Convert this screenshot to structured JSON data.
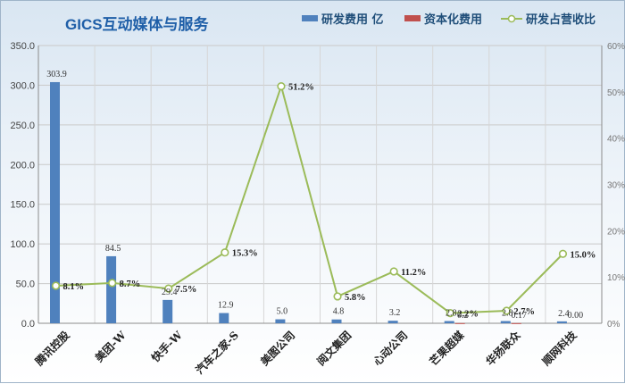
{
  "chart_data": {
    "type": "bar",
    "title": "GICS互动媒体与服务",
    "categories": [
      "腾讯控股",
      "美团-W",
      "快手-W",
      "汽车之家-S",
      "美图公司",
      "阅文集团",
      "心动公司",
      "芒果超媒",
      "华扬联众",
      "顺网科技"
    ],
    "series": [
      {
        "name": "研发费用 亿",
        "kind": "bar",
        "axis": "left",
        "color": "#4f81bd",
        "values": [
          303.9,
          84.5,
          29.4,
          12.9,
          5.0,
          4.8,
          3.2,
          2.8,
          2.8,
          2.4
        ],
        "labels": [
          "303.9",
          "84.5",
          "29.4",
          "12.9",
          "5.0",
          "4.8",
          "3.2",
          "2.8",
          "2.8",
          "2.4"
        ]
      },
      {
        "name": "资本化费用",
        "kind": "bar",
        "axis": "left",
        "color": "#c0504d",
        "values": [
          0,
          0,
          0,
          0,
          0,
          0,
          0,
          0.2,
          0.17,
          0.0
        ],
        "labels": [
          "",
          "",
          "",
          "",
          "",
          "",
          "",
          "0.2",
          "0.17",
          "0.00"
        ]
      },
      {
        "name": "研发占营收比",
        "kind": "line",
        "axis": "right",
        "color": "#9bbb59",
        "values": [
          8.1,
          8.7,
          7.5,
          15.3,
          51.2,
          5.8,
          11.2,
          2.2,
          2.7,
          15.0
        ],
        "labels": [
          "8.1%",
          "8.7%",
          "7.5%",
          "15.3%",
          "51.2%",
          "5.8%",
          "11.2%",
          "2.2%",
          "2.7%",
          "15.0%"
        ]
      }
    ],
    "y_left": {
      "ylim": [
        0,
        350
      ],
      "ticks": [
        "0.0",
        "50.0",
        "100.0",
        "150.0",
        "200.0",
        "250.0",
        "300.0",
        "350.0"
      ]
    },
    "y_right": {
      "ylim": [
        0,
        60
      ],
      "ticks": [
        "0%",
        "10%",
        "20%",
        "30%",
        "40%",
        "50%",
        "60%"
      ]
    },
    "legend": "top-right",
    "grid": true
  }
}
